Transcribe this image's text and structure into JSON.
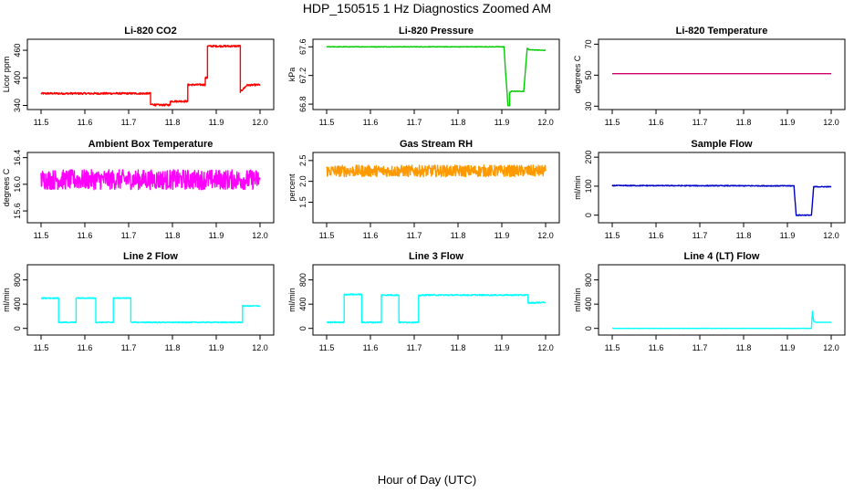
{
  "page": {
    "title": "HDP_150515  1 Hz Diagnostics Zoomed AM",
    "x_axis_title": "Hour of Day (UTC)"
  },
  "chart_data": [
    {
      "type": "line",
      "title": "Li-820 CO2",
      "xlabel": "",
      "ylabel": "Licor ppm",
      "xlim": [
        11.5,
        12.0
      ],
      "ylim": [
        335,
        480
      ],
      "color": "#ff0000",
      "grid": false,
      "x_ticks": [
        "11.5",
        "11.6",
        "11.7",
        "11.8",
        "11.9",
        "12.0"
      ],
      "y_ticks": [
        {
          "v": 340,
          "label": "340"
        },
        {
          "v": 400,
          "label": "400"
        },
        {
          "v": 460,
          "label": "460"
        }
      ],
      "noise": 2,
      "series": [
        {
          "points": [
            [
              11.5,
              366
            ],
            [
              11.75,
              366
            ],
            [
              11.75,
              342
            ],
            [
              11.76,
              342
            ],
            [
              11.76,
              341
            ],
            [
              11.795,
              341
            ],
            [
              11.795,
              349
            ],
            [
              11.835,
              349
            ],
            [
              11.835,
              385
            ],
            [
              11.875,
              385
            ],
            [
              11.875,
              400
            ],
            [
              11.88,
              400
            ],
            [
              11.88,
              469
            ],
            [
              11.955,
              469
            ],
            [
              11.955,
              370
            ],
            [
              11.965,
              379
            ],
            [
              11.97,
              384
            ],
            [
              12.0,
              385
            ]
          ]
        }
      ]
    },
    {
      "type": "line",
      "title": "Li-820 Pressure",
      "xlabel": "",
      "ylabel": "kPa",
      "xlim": [
        11.5,
        12.0
      ],
      "ylim": [
        66.75,
        67.68
      ],
      "color": "#00cc00",
      "grid": false,
      "x_ticks": [
        "11.5",
        "11.6",
        "11.7",
        "11.8",
        "11.9",
        "12.0"
      ],
      "y_ticks": [
        {
          "v": 66.8,
          "label": "66.8"
        },
        {
          "v": 67.2,
          "label": "67.2"
        },
        {
          "v": 67.6,
          "label": "67.6"
        }
      ],
      "noise": 0.004,
      "series": [
        {
          "points": [
            [
              11.5,
              67.6
            ],
            [
              11.9,
              67.6
            ],
            [
              11.905,
              67.6
            ],
            [
              11.908,
              67.3
            ],
            [
              11.912,
              66.96
            ],
            [
              11.914,
              66.78
            ],
            [
              11.918,
              66.78
            ],
            [
              11.918,
              66.96
            ],
            [
              11.922,
              66.98
            ],
            [
              11.95,
              66.98
            ],
            [
              11.953,
              67.2
            ],
            [
              11.958,
              67.58
            ],
            [
              11.962,
              67.56
            ],
            [
              12.0,
              67.55
            ]
          ]
        }
      ]
    },
    {
      "type": "line",
      "title": "Li-820 Temperature",
      "xlabel": "",
      "ylabel": "degrees C",
      "xlim": [
        11.5,
        12.0
      ],
      "ylim": [
        29,
        72
      ],
      "color": "#cc0066",
      "grid": false,
      "x_ticks": [
        "11.5",
        "11.6",
        "11.7",
        "11.8",
        "11.9",
        "12.0"
      ],
      "y_ticks": [
        {
          "v": 30,
          "label": "30"
        },
        {
          "v": 50,
          "label": "50"
        },
        {
          "v": 70,
          "label": "70"
        }
      ],
      "noise": 0,
      "series": [
        {
          "points": [
            [
              11.5,
              51
            ],
            [
              12.0,
              51
            ]
          ]
        }
      ]
    },
    {
      "type": "line",
      "title": "Ambient Box Temperature",
      "xlabel": "",
      "ylabel": "degrees C",
      "xlim": [
        11.5,
        12.0
      ],
      "ylim": [
        15.45,
        16.45
      ],
      "color": "#ff00ff",
      "grid": false,
      "x_ticks": [
        "11.5",
        "11.6",
        "11.7",
        "11.8",
        "11.9",
        "12.0"
      ],
      "y_ticks": [
        {
          "v": 15.6,
          "label": "15.6"
        },
        {
          "v": 16.0,
          "label": "16.0"
        },
        {
          "v": 16.4,
          "label": "16.4"
        }
      ],
      "noise": 0.15,
      "series": [
        {
          "points": [
            [
              11.5,
              16.07
            ],
            [
              12.0,
              16.07
            ]
          ]
        }
      ]
    },
    {
      "type": "line",
      "title": "Gas Stream RH",
      "xlabel": "",
      "ylabel": "percent",
      "xlim": [
        11.5,
        12.0
      ],
      "ylim": [
        1.05,
        2.65
      ],
      "color": "#ff9900",
      "grid": false,
      "x_ticks": [
        "11.5",
        "11.6",
        "11.7",
        "11.8",
        "11.9",
        "12.0"
      ],
      "y_ticks": [
        {
          "v": 1.5,
          "label": "1.5"
        },
        {
          "v": 2.0,
          "label": "2.0"
        },
        {
          "v": 2.5,
          "label": "2.5"
        }
      ],
      "noise": 0.14,
      "series": [
        {
          "points": [
            [
              11.5,
              2.25
            ],
            [
              12.0,
              2.25
            ]
          ]
        }
      ]
    },
    {
      "type": "line",
      "title": "Sample Flow",
      "xlabel": "",
      "ylabel": "ml/min",
      "xlim": [
        11.5,
        12.0
      ],
      "ylim": [
        -20,
        210
      ],
      "color": "#0000cc",
      "grid": false,
      "x_ticks": [
        "11.5",
        "11.6",
        "11.7",
        "11.8",
        "11.9",
        "12.0"
      ],
      "y_ticks": [
        {
          "v": 0,
          "label": "0"
        },
        {
          "v": 100,
          "label": "100"
        },
        {
          "v": 200,
          "label": "200"
        }
      ],
      "noise": 1.5,
      "series": [
        {
          "points": [
            [
              11.5,
              102
            ],
            [
              11.915,
              101
            ],
            [
              11.92,
              0
            ],
            [
              11.955,
              0
            ],
            [
              11.96,
              98
            ],
            [
              12.0,
              98
            ]
          ]
        }
      ]
    },
    {
      "type": "line",
      "title": "Line 2 Flow",
      "xlabel": "",
      "ylabel": "ml/min",
      "xlim": [
        11.5,
        12.0
      ],
      "ylim": [
        -80,
        1020
      ],
      "color": "#00ffff",
      "grid": false,
      "x_ticks": [
        "11.5",
        "11.6",
        "11.7",
        "11.8",
        "11.9",
        "12.0"
      ],
      "y_ticks": [
        {
          "v": 0,
          "label": "0"
        },
        {
          "v": 400,
          "label": "400"
        },
        {
          "v": 800,
          "label": "800"
        }
      ],
      "noise": 8,
      "series": [
        {
          "points": [
            [
              11.5,
              500
            ],
            [
              11.54,
              500
            ],
            [
              11.54,
              100
            ],
            [
              11.58,
              100
            ],
            [
              11.58,
              500
            ],
            [
              11.625,
              500
            ],
            [
              11.625,
              100
            ],
            [
              11.665,
              100
            ],
            [
              11.665,
              500
            ],
            [
              11.705,
              500
            ],
            [
              11.705,
              110
            ],
            [
              11.71,
              100
            ],
            [
              11.96,
              100
            ],
            [
              11.96,
              370
            ],
            [
              12.0,
              370
            ]
          ]
        }
      ]
    },
    {
      "type": "line",
      "title": "Line 3 Flow",
      "xlabel": "",
      "ylabel": "ml/min",
      "xlim": [
        11.5,
        12.0
      ],
      "ylim": [
        -80,
        1020
      ],
      "color": "#00ffff",
      "grid": false,
      "x_ticks": [
        "11.5",
        "11.6",
        "11.7",
        "11.8",
        "11.9",
        "12.0"
      ],
      "y_ticks": [
        {
          "v": 0,
          "label": "0"
        },
        {
          "v": 400,
          "label": "400"
        },
        {
          "v": 800,
          "label": "800"
        }
      ],
      "noise": 10,
      "series": [
        {
          "points": [
            [
              11.5,
              100
            ],
            [
              11.54,
              100
            ],
            [
              11.54,
              560
            ],
            [
              11.58,
              560
            ],
            [
              11.58,
              100
            ],
            [
              11.625,
              100
            ],
            [
              11.625,
              550
            ],
            [
              11.665,
              550
            ],
            [
              11.665,
              100
            ],
            [
              11.71,
              100
            ],
            [
              11.71,
              540
            ],
            [
              11.72,
              550
            ],
            [
              11.96,
              550
            ],
            [
              11.96,
              420
            ],
            [
              12.0,
              430
            ]
          ]
        }
      ]
    },
    {
      "type": "line",
      "title": "Line 4 (LT) Flow",
      "xlabel": "",
      "ylabel": "ml/min",
      "xlim": [
        11.5,
        12.0
      ],
      "ylim": [
        -80,
        1020
      ],
      "color": "#00ffff",
      "grid": false,
      "x_ticks": [
        "11.5",
        "11.6",
        "11.7",
        "11.8",
        "11.9",
        "12.0"
      ],
      "y_ticks": [
        {
          "v": 0,
          "label": "0"
        },
        {
          "v": 400,
          "label": "400"
        },
        {
          "v": 800,
          "label": "800"
        }
      ],
      "noise": 2,
      "series": [
        {
          "points": [
            [
              11.5,
              0
            ],
            [
              11.955,
              0
            ],
            [
              11.957,
              280
            ],
            [
              11.96,
              120
            ],
            [
              11.965,
              100
            ],
            [
              12.0,
              100
            ]
          ]
        }
      ]
    }
  ]
}
